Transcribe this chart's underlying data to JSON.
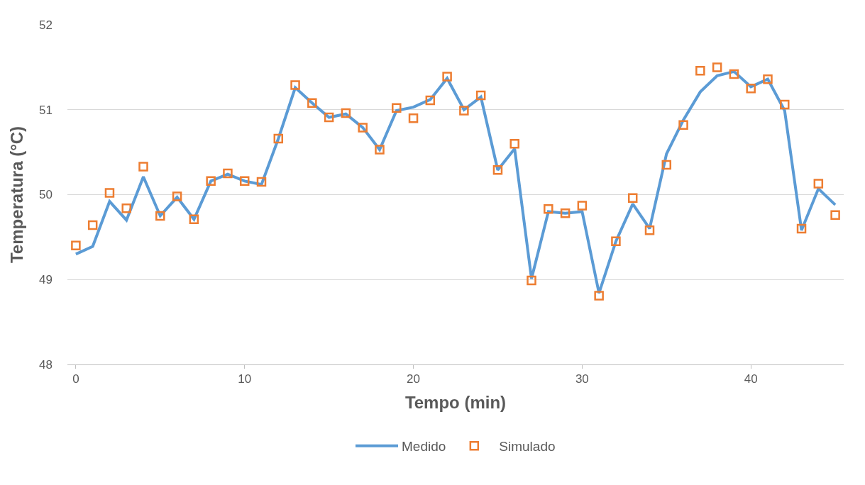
{
  "chart_data": {
    "type": "line",
    "xlabel": "Tempo (min)",
    "ylabel": "Temperatura (°C)",
    "x": [
      0,
      1,
      2,
      3,
      4,
      5,
      6,
      7,
      8,
      9,
      10,
      11,
      12,
      13,
      14,
      15,
      16,
      17,
      18,
      19,
      20,
      21,
      22,
      23,
      24,
      25,
      26,
      27,
      28,
      29,
      30,
      31,
      32,
      33,
      34,
      35,
      36,
      37,
      38,
      39,
      40,
      41,
      42,
      43,
      44,
      45
    ],
    "series": [
      {
        "name": "Medido",
        "marker": "none",
        "color": "#5b9bd5",
        "values": [
          49.3,
          49.39,
          49.92,
          49.7,
          50.21,
          49.75,
          49.97,
          49.71,
          50.16,
          50.24,
          50.16,
          50.12,
          50.66,
          51.26,
          51.08,
          50.91,
          50.95,
          50.79,
          50.53,
          50.99,
          51.03,
          51.12,
          51.37,
          51.0,
          51.15,
          50.29,
          50.54,
          49.01,
          49.8,
          49.78,
          49.8,
          48.84,
          49.45,
          49.89,
          49.6,
          50.48,
          50.88,
          51.21,
          51.4,
          51.45,
          51.27,
          51.36,
          50.99,
          49.58,
          50.07,
          49.88
        ]
      },
      {
        "name": "Simulado",
        "type": "scatter",
        "marker": "square",
        "color": "#ed7d31",
        "values": [
          49.4,
          49.64,
          50.02,
          49.84,
          50.33,
          49.75,
          49.98,
          49.71,
          50.16,
          50.25,
          50.16,
          50.15,
          50.66,
          51.29,
          51.08,
          50.91,
          50.96,
          50.79,
          50.53,
          51.02,
          50.9,
          51.11,
          51.39,
          50.99,
          51.17,
          50.29,
          50.6,
          48.99,
          49.83,
          49.78,
          49.87,
          48.81,
          49.45,
          49.96,
          49.58,
          50.35,
          50.82,
          51.46,
          51.5,
          51.42,
          51.25,
          51.36,
          51.06,
          49.6,
          50.13,
          49.76
        ]
      }
    ],
    "xlim": [
      -0.5,
      45.5
    ],
    "xticks": [
      0,
      10,
      20,
      30,
      40
    ],
    "ylim": [
      48,
      52
    ],
    "yticks": [
      48,
      49,
      50,
      51,
      52
    ],
    "grid": "y",
    "legend": "bottom"
  }
}
